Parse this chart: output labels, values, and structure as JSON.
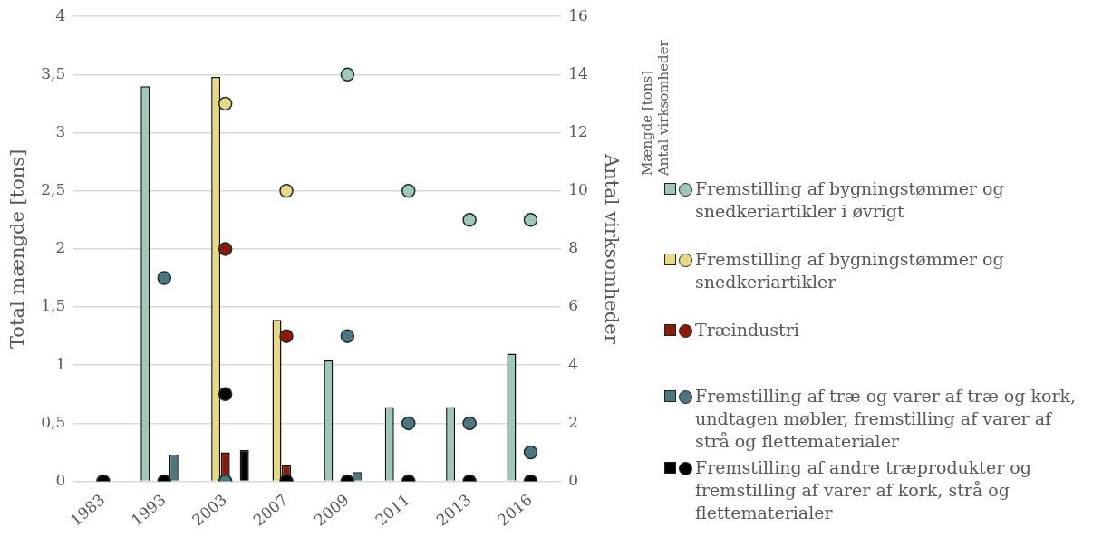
{
  "chart_data": {
    "type": "bar",
    "ylabel": "Total mængde [tons]",
    "y2label": "Antal virksomheder",
    "legend_title": "Mængde [tons]\nAntal virksomheder",
    "categories": [
      "1983",
      "1993",
      "2003",
      "2007",
      "2009",
      "2011",
      "2013",
      "2016"
    ],
    "ylim": [
      0,
      4
    ],
    "yticks": [
      0,
      {
        "value": 0.5,
        "label": "0,5"
      },
      1,
      {
        "value": 1.5,
        "label": "1,5"
      },
      2,
      {
        "value": 2.5,
        "label": "2,5"
      },
      3,
      {
        "value": 3.5,
        "label": "3,5"
      },
      4
    ],
    "y2lim": [
      0,
      16
    ],
    "y2ticks": [
      0,
      2,
      4,
      6,
      8,
      10,
      12,
      14,
      16
    ],
    "grid": "y",
    "legend": "right",
    "marker": "circle",
    "series": [
      {
        "name": "Fremstilling af bygningstømmer og snedkeriartikler i øvrigt",
        "color": "#9fc9b7",
        "values": [
          null,
          3.4,
          null,
          null,
          1.04,
          0.64,
          0.64,
          1.1
        ]
      },
      {
        "name": "Fremstilling af bygningstømmer og snedkeriartikler",
        "color": "#e8d882",
        "values": [
          null,
          null,
          3.48,
          1.39,
          null,
          null,
          null,
          null
        ]
      },
      {
        "name": "Træindustri",
        "color": "#8b1a0a",
        "values": [
          null,
          null,
          0.25,
          0.14,
          null,
          null,
          null,
          null
        ]
      },
      {
        "name": "Fremstilling af træ og varer af træ og kork, undtagen møbler, fremstilling af varer af strå og flettematerialer",
        "color": "#4d7780",
        "values": [
          null,
          0.23,
          null,
          null,
          0.08,
          null,
          null,
          null
        ]
      },
      {
        "name": "Fremstilling af andre træprodukter og fremstilling af varer af kork, strå og flettematerialer",
        "color": "#000000",
        "values": [
          null,
          null,
          0.27,
          null,
          null,
          null,
          null,
          null
        ]
      },
      {
        "type": "scatter",
        "axis": "y2",
        "color": "#9fc9b7",
        "values": [
          null,
          null,
          null,
          null,
          14,
          10,
          9,
          9
        ]
      },
      {
        "type": "scatter",
        "axis": "y2",
        "color": "#e8d882",
        "values": [
          null,
          null,
          13,
          10,
          null,
          null,
          null,
          null
        ]
      },
      {
        "type": "scatter",
        "axis": "y2",
        "color": "#8b1a0a",
        "values": [
          null,
          null,
          8,
          5,
          null,
          null,
          null,
          null
        ]
      },
      {
        "type": "scatter",
        "axis": "y2",
        "color": "#4d7780",
        "values": [
          null,
          7,
          0,
          null,
          5,
          2,
          2,
          1
        ]
      },
      {
        "type": "scatter",
        "axis": "y2",
        "color": "#000000",
        "values": [
          0,
          0,
          3,
          0,
          0,
          0,
          0,
          0
        ]
      }
    ]
  }
}
